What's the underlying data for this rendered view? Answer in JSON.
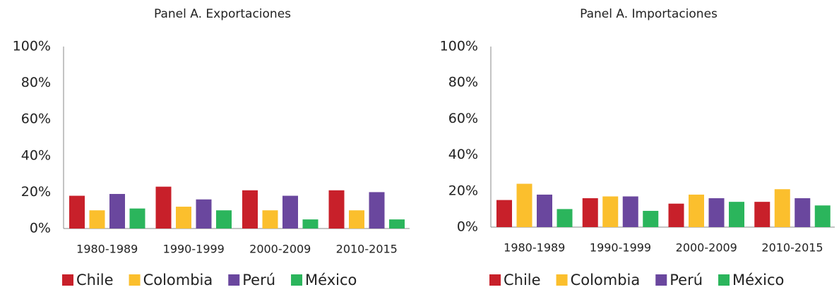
{
  "chart_data": [
    {
      "type": "bar",
      "title": "Panel A. Exportaciones",
      "categories": [
        "1980-1989",
        "1990-1999",
        "2000-2009",
        "2010-2015"
      ],
      "series": [
        {
          "name": "Chile",
          "color": "#c8202a",
          "values": [
            18,
            23,
            21,
            21
          ]
        },
        {
          "name": "Colombia",
          "color": "#fbbf2d",
          "values": [
            10,
            12,
            10,
            10
          ]
        },
        {
          "name": "Perú",
          "color": "#6a479e",
          "values": [
            19,
            16,
            18,
            20
          ]
        },
        {
          "name": "México",
          "color": "#2bb55c",
          "values": [
            11,
            10,
            5,
            5
          ]
        }
      ],
      "ylim": [
        0,
        100
      ],
      "yticks": [
        {
          "value": 0,
          "label": "0%"
        },
        {
          "value": 20,
          "label": "20%"
        },
        {
          "value": 40,
          "label": "40%"
        },
        {
          "value": 60,
          "label": "60%"
        },
        {
          "value": 80,
          "label": "80%"
        },
        {
          "value": 100,
          "label": "100%"
        }
      ],
      "grid": false,
      "legend": "bottom"
    },
    {
      "type": "bar",
      "title": "Panel A. Importaciones",
      "categories": [
        "1980-1989",
        "1990-1999",
        "2000-2009",
        "2010-2015"
      ],
      "series": [
        {
          "name": "Chile",
          "color": "#c8202a",
          "values": [
            15,
            16,
            13,
            14
          ]
        },
        {
          "name": "Colombia",
          "color": "#fbbf2d",
          "values": [
            24,
            17,
            18,
            21
          ]
        },
        {
          "name": "Perú",
          "color": "#6a479e",
          "values": [
            18,
            17,
            16,
            16
          ]
        },
        {
          "name": "México",
          "color": "#2bb55c",
          "values": [
            10,
            9,
            14,
            12
          ]
        }
      ],
      "ylim": [
        0,
        100
      ],
      "yticks": [
        {
          "value": 0,
          "label": "0%"
        },
        {
          "value": 20,
          "label": "20%"
        },
        {
          "value": 40,
          "label": "40%"
        },
        {
          "value": 60,
          "label": "60%"
        },
        {
          "value": 80,
          "label": "80%"
        },
        {
          "value": 100,
          "label": "100%"
        }
      ],
      "grid": false,
      "legend": "bottom"
    }
  ]
}
